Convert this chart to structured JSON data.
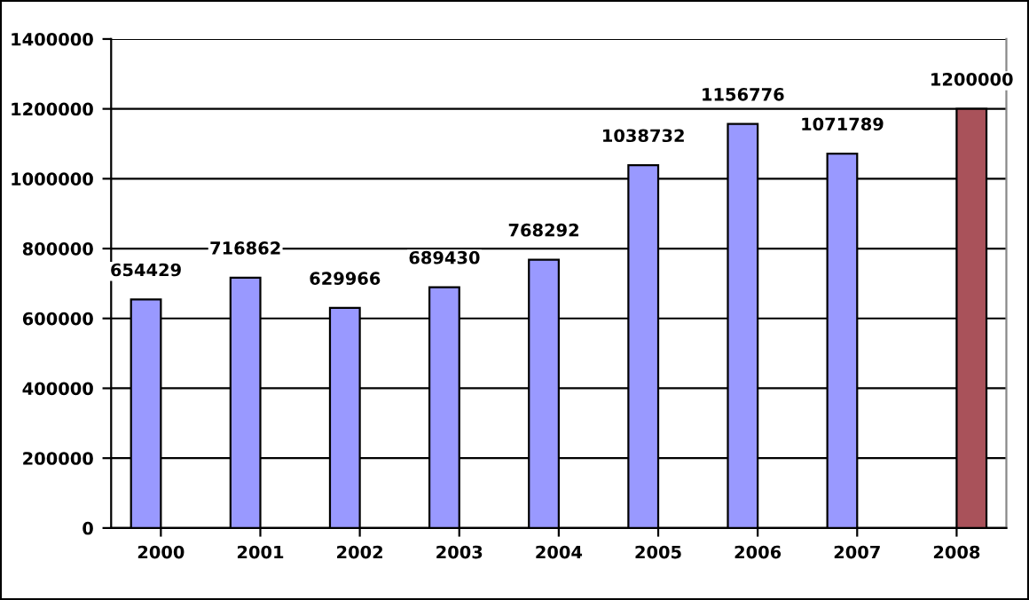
{
  "chart_data": {
    "type": "bar",
    "categories": [
      "2000",
      "2001",
      "2002",
      "2003",
      "2004",
      "2005",
      "2006",
      "2007",
      "2008"
    ],
    "series": [
      {
        "color": "#9999ff",
        "values": [
          654429,
          716862,
          629966,
          689430,
          768292,
          1038732,
          1156776,
          1071789,
          null
        ]
      },
      {
        "color": "#a9525a",
        "values": [
          null,
          null,
          null,
          null,
          null,
          null,
          null,
          null,
          1200000
        ]
      }
    ],
    "ylim": [
      0,
      1400000
    ],
    "yticks": [
      0,
      200000,
      400000,
      600000,
      800000,
      1000000,
      1200000,
      1400000
    ],
    "grid": "y",
    "data_labels": true,
    "legend": false
  }
}
